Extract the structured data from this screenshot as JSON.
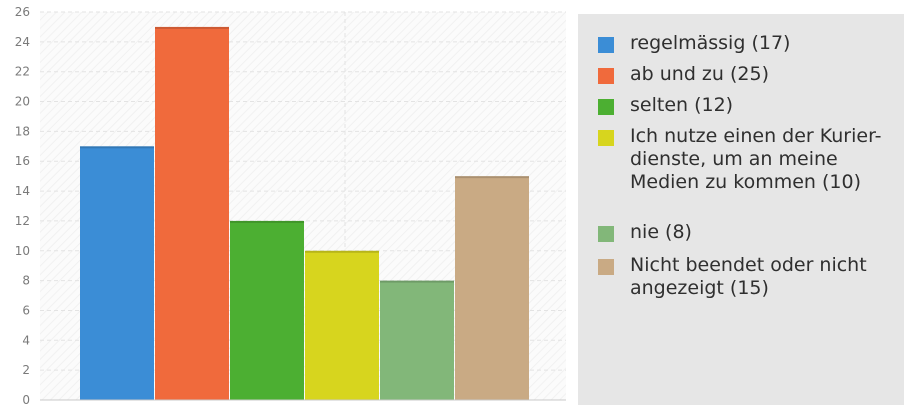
{
  "chart_data": {
    "type": "bar",
    "categories": [
      "regelmässig (17)",
      "ab und zu (25)",
      "selten (12)",
      "Ich nutze einen der Kurier-dienste, um an meine Medien zu kommen (10)",
      "nie (8)",
      "Nicht beendet oder nicht angezeigt (15)"
    ],
    "values": [
      17,
      25,
      12,
      10,
      8,
      15
    ],
    "colors": [
      "#3b8dd6",
      "#f06a3c",
      "#4caf32",
      "#d7d51e",
      "#82b779",
      "#c9aa84"
    ],
    "yticks": [
      "0",
      "2",
      "4",
      "6",
      "8",
      "10",
      "12",
      "14",
      "16",
      "18",
      "20",
      "22",
      "24",
      "26"
    ],
    "ylim": [
      0,
      26
    ],
    "title": "",
    "xlabel": "",
    "ylabel": "",
    "grid": true,
    "legend_position": "right"
  },
  "legend": {
    "items": [
      {
        "label": "regelmässig (17)"
      },
      {
        "label": "ab und zu (25)"
      },
      {
        "label": "selten (12)"
      },
      {
        "label": "Ich nutze einen der Kurier-dienste, um an meine Medien zu kommen (10)"
      },
      {
        "label": "nie (8)"
      },
      {
        "label": "Nicht beendet oder nicht angezeigt (15)"
      }
    ]
  }
}
